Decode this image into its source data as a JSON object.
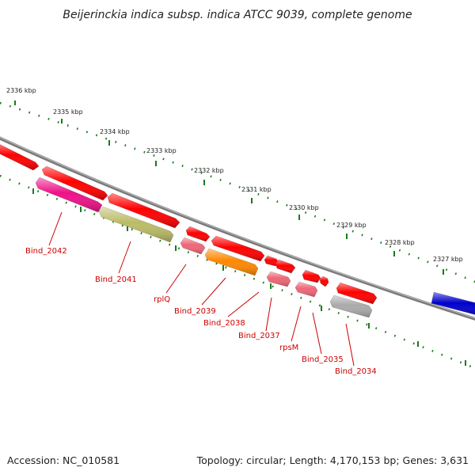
{
  "title": "Beijerinckia indica subsp. indica ATCC 9039, complete genome",
  "footer": {
    "accession": "Accession: NC_010581",
    "topology": "Topology: circular; Length: 4,170,153 bp; Genes: 3,631"
  },
  "colors": {
    "backbone": "#7a7a7a",
    "tick": "#1a7a1a",
    "label": "#cc0000",
    "gene_red": "#ff0000",
    "gene_pink": "#ee6677",
    "gene_magenta": "#ee1188",
    "gene_olive": "#bbbb66",
    "gene_orange": "#ff8800",
    "gene_gray": "#aaaaaa",
    "gene_blue": "#0000cc"
  },
  "kbp_labels": [
    "2336 kbp",
    "2335 kbp",
    "2334 kbp",
    "2333 kbp",
    "2332 kbp",
    "2331 kbp",
    "2330 kbp",
    "2329 kbp",
    "2328 kbp",
    "2327 kbp"
  ],
  "gene_labels": [
    "Bind_2042",
    "Bind_2041",
    "rplQ",
    "Bind_2039",
    "Bind_2038",
    "Bind_2037",
    "rpsM",
    "Bind_2035",
    "Bind_2034"
  ]
}
